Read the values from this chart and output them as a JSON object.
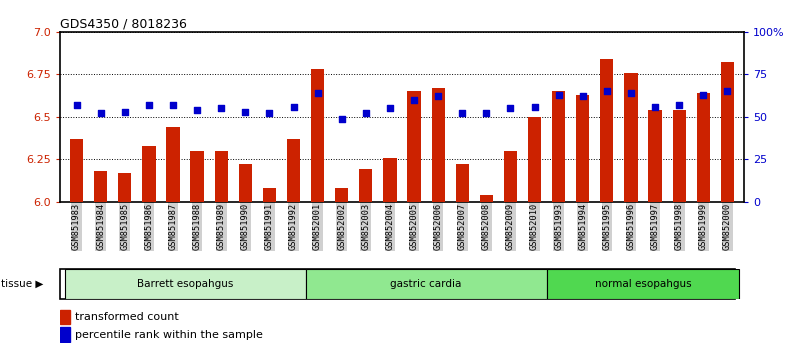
{
  "title": "GDS4350 / 8018236",
  "samples": [
    "GSM851983",
    "GSM851984",
    "GSM851985",
    "GSM851986",
    "GSM851987",
    "GSM851988",
    "GSM851989",
    "GSM851990",
    "GSM851991",
    "GSM851992",
    "GSM852001",
    "GSM852002",
    "GSM852003",
    "GSM852004",
    "GSM852005",
    "GSM852006",
    "GSM852007",
    "GSM852008",
    "GSM852009",
    "GSM852010",
    "GSM851993",
    "GSM851994",
    "GSM851995",
    "GSM851996",
    "GSM851997",
    "GSM851998",
    "GSM851999",
    "GSM852000"
  ],
  "red_values": [
    6.37,
    6.18,
    6.17,
    6.33,
    6.44,
    6.3,
    6.3,
    6.22,
    6.08,
    6.37,
    6.78,
    6.08,
    6.19,
    6.26,
    6.65,
    6.67,
    6.22,
    6.04,
    6.3,
    6.5,
    6.65,
    6.63,
    6.84,
    6.76,
    6.54,
    6.54,
    6.64,
    6.82
  ],
  "blue_values": [
    57,
    52,
    53,
    57,
    57,
    54,
    55,
    53,
    52,
    56,
    64,
    49,
    52,
    55,
    60,
    62,
    52,
    52,
    55,
    56,
    63,
    62,
    65,
    64,
    56,
    57,
    63,
    65
  ],
  "groups": [
    {
      "label": "Barrett esopahgus",
      "start": 0,
      "end": 10,
      "color": "#c8f0c8"
    },
    {
      "label": "gastric cardia",
      "start": 10,
      "end": 20,
      "color": "#90e890"
    },
    {
      "label": "normal esopahgus",
      "start": 20,
      "end": 28,
      "color": "#50d850"
    }
  ],
  "ylim_left": [
    6.0,
    7.0
  ],
  "ylim_right": [
    0,
    100
  ],
  "yticks_left": [
    6.0,
    6.25,
    6.5,
    6.75,
    7.0
  ],
  "yticks_right": [
    0,
    25,
    50,
    75,
    100
  ],
  "ytick_right_labels": [
    "0",
    "25",
    "50",
    "75",
    "100%"
  ],
  "bar_color": "#cc2200",
  "dot_color": "#0000cc",
  "tick_bg": "#d0d0d0",
  "bar_width": 0.55
}
